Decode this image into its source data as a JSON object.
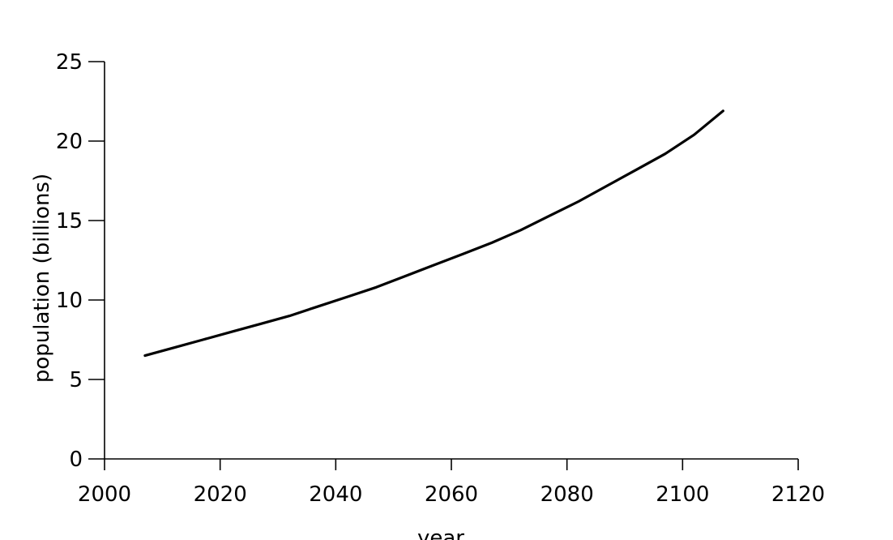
{
  "chart_data": {
    "type": "line",
    "title": "",
    "xlabel": "year",
    "ylabel": "population (billions)",
    "xlim": [
      2000,
      2120
    ],
    "ylim": [
      0,
      25
    ],
    "x_ticks": [
      2000,
      2020,
      2040,
      2060,
      2080,
      2100,
      2120
    ],
    "y_ticks": [
      0,
      5,
      10,
      15,
      20,
      25
    ],
    "grid": false,
    "legend": "none",
    "series": [
      {
        "x": [
          2007,
          2012,
          2017,
          2022,
          2027,
          2032,
          2037,
          2042,
          2047,
          2052,
          2057,
          2062,
          2067,
          2072,
          2077,
          2082,
          2087,
          2092,
          2097,
          2102,
          2107
        ],
        "y": [
          6.5,
          7.0,
          7.5,
          8.0,
          8.5,
          9.0,
          9.6,
          10.2,
          10.8,
          11.5,
          12.2,
          12.9,
          13.6,
          14.4,
          15.3,
          16.2,
          17.2,
          18.2,
          19.2,
          20.4,
          21.9
        ],
        "color": "#000000"
      }
    ]
  }
}
